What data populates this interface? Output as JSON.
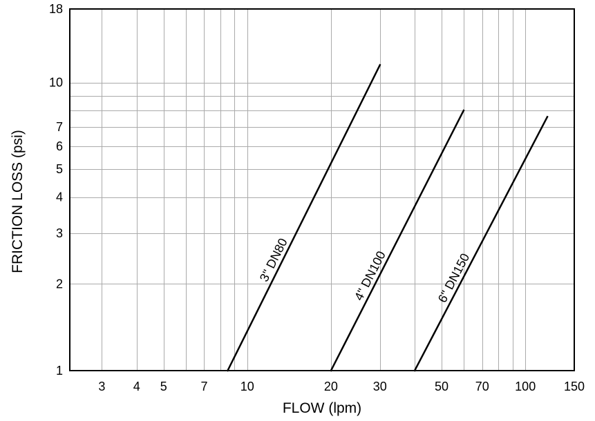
{
  "chart_data": {
    "type": "line",
    "title": "",
    "xlabel": "FLOW (lpm)",
    "ylabel": "FRICTION LOSS (psi)",
    "xscale": "log",
    "yscale": "log",
    "xlim": [
      2.3,
      150
    ],
    "ylim": [
      1,
      18
    ],
    "grid": true,
    "legend": "none",
    "x_ticks": [
      {
        "value": 3,
        "label": "3"
      },
      {
        "value": 4,
        "label": "4"
      },
      {
        "value": 5,
        "label": "5"
      },
      {
        "value": 7,
        "label": "7"
      },
      {
        "value": 10,
        "label": "10"
      },
      {
        "value": 20,
        "label": "20"
      },
      {
        "value": 30,
        "label": "30"
      },
      {
        "value": 50,
        "label": "50"
      },
      {
        "value": 70,
        "label": "70"
      },
      {
        "value": 100,
        "label": "100"
      },
      {
        "value": 150,
        "label": "150"
      }
    ],
    "x_grid": [
      3,
      4,
      5,
      6,
      7,
      8,
      9,
      10,
      20,
      30,
      40,
      50,
      60,
      70,
      80,
      90,
      100,
      150
    ],
    "y_ticks": [
      {
        "value": 1,
        "label": "1"
      },
      {
        "value": 2,
        "label": "2"
      },
      {
        "value": 3,
        "label": "3"
      },
      {
        "value": 4,
        "label": "4"
      },
      {
        "value": 5,
        "label": "5"
      },
      {
        "value": 6,
        "label": "6"
      },
      {
        "value": 7,
        "label": "7"
      },
      {
        "value": 10,
        "label": "10"
      },
      {
        "value": 18,
        "label": "18"
      }
    ],
    "y_grid": [
      1,
      2,
      3,
      4,
      5,
      6,
      7,
      8,
      9,
      10,
      18
    ],
    "series": [
      {
        "name": "3\" DN80",
        "points": [
          [
            8.5,
            1
          ],
          [
            30,
            11.5
          ]
        ]
      },
      {
        "name": "4\" DN100",
        "points": [
          [
            20,
            1
          ],
          [
            60,
            8
          ]
        ]
      },
      {
        "name": "6\" DN150",
        "points": [
          [
            40,
            1
          ],
          [
            120,
            7.6
          ]
        ]
      }
    ]
  }
}
